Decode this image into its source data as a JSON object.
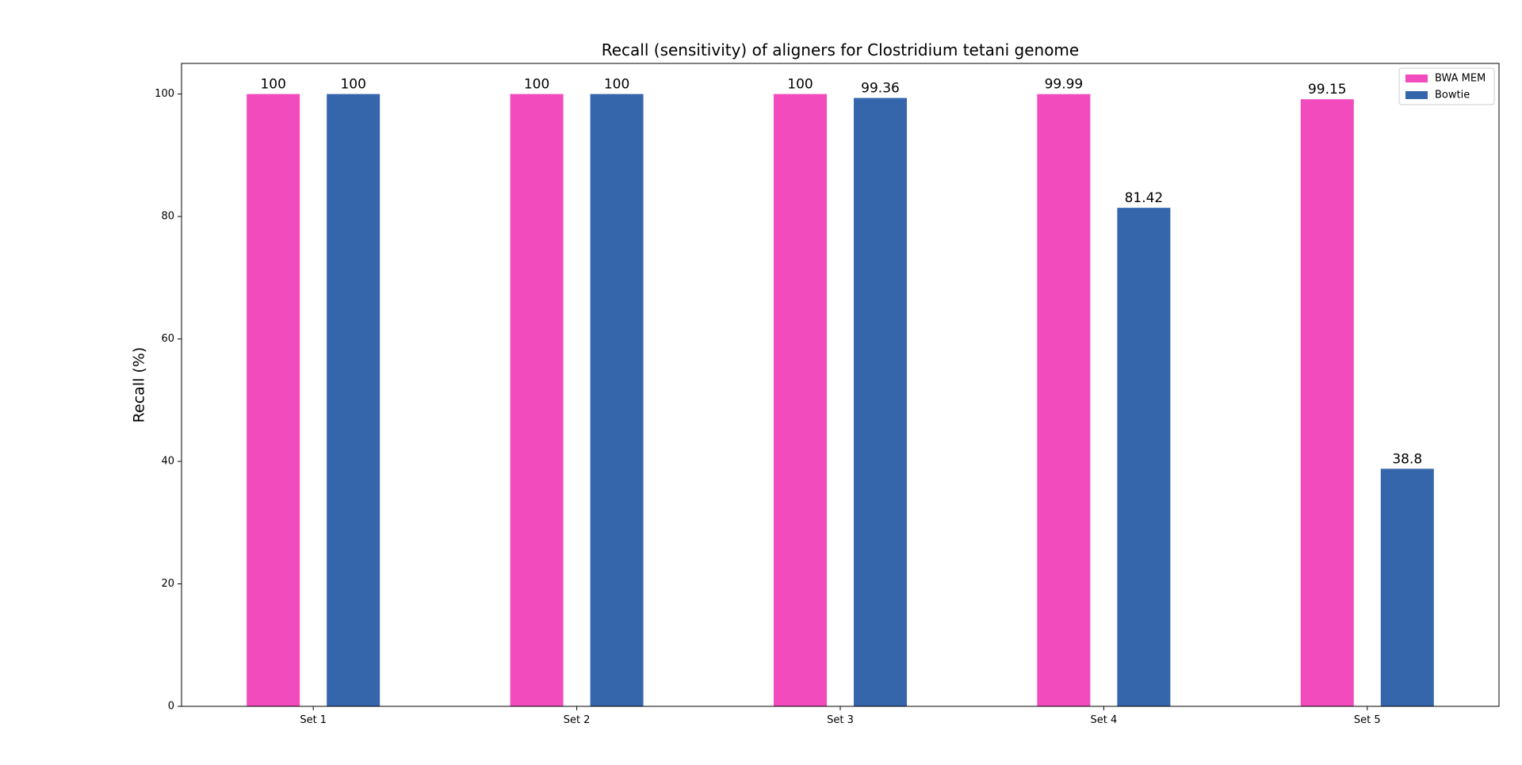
{
  "chart_data": {
    "type": "bar",
    "title": "Recall (sensitivity) of aligners for Clostridium tetani genome",
    "xlabel": "",
    "ylabel": "Recall (%)",
    "categories": [
      "Set 1",
      "Set 2",
      "Set 3",
      "Set 4",
      "Set 5"
    ],
    "series": [
      {
        "name": "BWA MEM",
        "color": "#f24bbe",
        "values": [
          100,
          100,
          100,
          99.99,
          99.15
        ],
        "labels": [
          "100",
          "100",
          "100",
          "99.99",
          "99.15"
        ]
      },
      {
        "name": "Bowtie",
        "color": "#3566ac",
        "values": [
          100,
          100,
          99.36,
          81.42,
          38.8
        ],
        "labels": [
          "100",
          "100",
          "99.36",
          "81.42",
          "38.8"
        ]
      }
    ],
    "ylim": [
      0,
      105
    ],
    "yticks": [
      0,
      20,
      40,
      60,
      80,
      100
    ],
    "ytick_labels": [
      "0",
      "20",
      "40",
      "60",
      "80",
      "100"
    ],
    "grid": false,
    "legend_position": "top-right"
  }
}
